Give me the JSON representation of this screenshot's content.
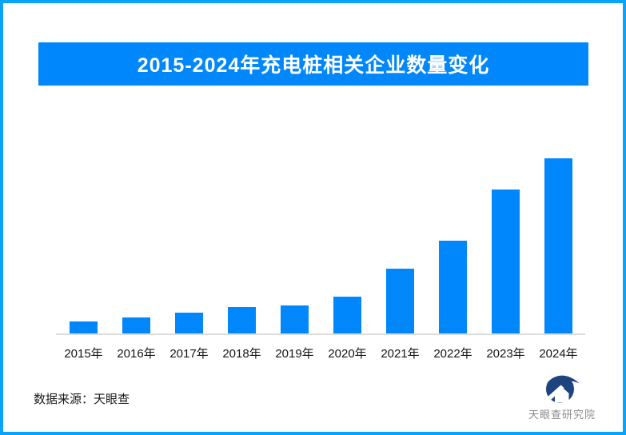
{
  "page": {
    "background": "#FFFFFF",
    "border_color": "#09A3FC"
  },
  "banner": {
    "title": "2015-2024年充电桩相关企业数量变化",
    "bg_color": "#0087FC",
    "text_color": "#FFFFFF"
  },
  "chart_data": {
    "type": "bar",
    "title": "2015-2024年充电桩相关企业数量变化",
    "categories": [
      "2015年",
      "2016年",
      "2017年",
      "2018年",
      "2019年",
      "2020年",
      "2021年",
      "2022年",
      "2023年",
      "2024年"
    ],
    "values": [
      7,
      9,
      12,
      15,
      16,
      21,
      37,
      53,
      82,
      100
    ],
    "values_unit": "relative height, percent of 2024 bar (no numeric y-axis shown in chart)",
    "ylim": [
      0,
      100
    ],
    "bar_color": "#0087FC",
    "axis_line_color": "#DDDDDD",
    "xlabel": "",
    "ylabel": "",
    "y_axis_visible": false,
    "data_labels_visible": false,
    "grid": false,
    "legend": false
  },
  "footer": {
    "source_label": "数据来源：天眼查"
  },
  "logo": {
    "name": "天眼查研究院",
    "emblem_icon": "tianyancha-eye-house-logo",
    "emblem_color": "#1E4480",
    "text_color": "#8C8C8C"
  }
}
